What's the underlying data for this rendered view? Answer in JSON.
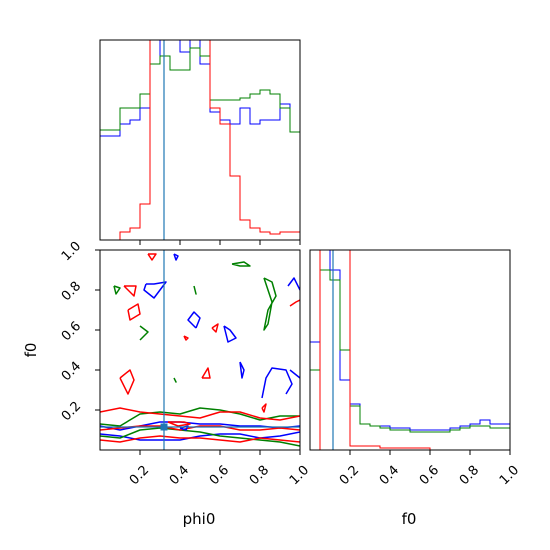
{
  "chart_data": {
    "type": "corner",
    "parameters": [
      "phi0",
      "f0"
    ],
    "truths": {
      "phi0": 0.32,
      "f0": 0.115
    },
    "series_colors": [
      "#0000ff",
      "#008000",
      "#ff0000"
    ],
    "truth_color": "#1f77b4",
    "tick_labels": [
      "0.2",
      "0.4",
      "0.6",
      "0.8",
      "1.0"
    ],
    "y_tick_labels": [
      "0.2",
      "0.4",
      "0.6",
      "0.8",
      "1.0"
    ],
    "xlim": [
      0,
      1
    ],
    "ylim": [
      0,
      1
    ],
    "histograms": {
      "phi0": {
        "bins": 20,
        "series": [
          {
            "color": "blue",
            "values": [
              0.52,
              0.52,
              0.58,
              0.6,
              0.66,
              0.88,
              1.0,
              1.0,
              0.94,
              1.0,
              0.88,
              0.64,
              0.6,
              0.58,
              0.66,
              0.58,
              0.6,
              0.6,
              0.68,
              0.54
            ]
          },
          {
            "color": "green",
            "values": [
              0.55,
              0.55,
              0.66,
              0.66,
              0.73,
              0.88,
              0.92,
              0.85,
              0.85,
              0.96,
              0.92,
              0.7,
              0.7,
              0.7,
              0.71,
              0.73,
              0.75,
              0.73,
              0.66,
              0.54
            ]
          },
          {
            "color": "red",
            "values": [
              0.0,
              0.0,
              0.04,
              0.06,
              0.18,
              1.0,
              1.0,
              1.0,
              1.0,
              1.0,
              1.0,
              0.66,
              0.58,
              0.32,
              0.1,
              0.06,
              0.04,
              0.03,
              0.04,
              0.04
            ]
          }
        ]
      },
      "f0": {
        "bins": 20,
        "series": [
          {
            "color": "blue",
            "values": [
              0.54,
              1.0,
              0.9,
              0.35,
              0.23,
              0.13,
              0.12,
              0.12,
              0.11,
              0.11,
              0.1,
              0.1,
              0.1,
              0.1,
              0.11,
              0.12,
              0.13,
              0.15,
              0.13,
              0.13
            ]
          },
          {
            "color": "green",
            "values": [
              0.4,
              0.9,
              0.85,
              0.5,
              0.22,
              0.13,
              0.12,
              0.11,
              0.1,
              0.1,
              0.09,
              0.09,
              0.09,
              0.09,
              0.1,
              0.11,
              0.12,
              0.12,
              0.11,
              0.11
            ]
          },
          {
            "color": "red",
            "values": [
              0.0,
              1.0,
              1.0,
              1.0,
              0.02,
              0.02,
              0.02,
              0.01,
              0.01,
              0.01,
              0.01,
              0.01,
              0.0,
              0.0,
              0.0,
              0.0,
              0.0,
              0.0,
              0.0,
              0.0
            ]
          }
        ]
      }
    },
    "contours": [
      {
        "color": "blue",
        "points": [
          [
            0.0,
            0.12
          ],
          [
            0.1,
            0.1
          ],
          [
            0.2,
            0.12
          ],
          [
            0.3,
            0.14
          ],
          [
            0.4,
            0.14
          ],
          [
            0.5,
            0.13
          ],
          [
            0.6,
            0.13
          ],
          [
            0.7,
            0.12
          ],
          [
            0.8,
            0.12
          ],
          [
            0.9,
            0.11
          ],
          [
            1.0,
            0.12
          ]
        ]
      },
      {
        "color": "blue",
        "points": [
          [
            0.0,
            0.08
          ],
          [
            0.1,
            0.07
          ],
          [
            0.2,
            0.05
          ],
          [
            0.3,
            0.05
          ],
          [
            0.4,
            0.05
          ],
          [
            0.5,
            0.07
          ],
          [
            0.6,
            0.08
          ],
          [
            0.7,
            0.08
          ],
          [
            0.8,
            0.06
          ],
          [
            0.9,
            0.07
          ],
          [
            1.0,
            0.09
          ]
        ]
      },
      {
        "color": "green",
        "points": [
          [
            0.0,
            0.13
          ],
          [
            0.1,
            0.12
          ],
          [
            0.2,
            0.18
          ],
          [
            0.3,
            0.19
          ],
          [
            0.4,
            0.18
          ],
          [
            0.5,
            0.21
          ],
          [
            0.6,
            0.2
          ],
          [
            0.7,
            0.18
          ],
          [
            0.8,
            0.15
          ],
          [
            0.9,
            0.17
          ],
          [
            1.0,
            0.17
          ]
        ]
      },
      {
        "color": "green",
        "points": [
          [
            0.0,
            0.07
          ],
          [
            0.1,
            0.06
          ],
          [
            0.2,
            0.1
          ],
          [
            0.3,
            0.11
          ],
          [
            0.4,
            0.1
          ],
          [
            0.5,
            0.09
          ],
          [
            0.6,
            0.07
          ],
          [
            0.7,
            0.06
          ],
          [
            0.8,
            0.05
          ],
          [
            0.9,
            0.04
          ],
          [
            1.0,
            0.02
          ]
        ]
      },
      {
        "color": "red",
        "points": [
          [
            0.0,
            0.19
          ],
          [
            0.1,
            0.21
          ],
          [
            0.2,
            0.19
          ],
          [
            0.3,
            0.18
          ],
          [
            0.4,
            0.17
          ],
          [
            0.5,
            0.16
          ],
          [
            0.6,
            0.19
          ],
          [
            0.7,
            0.19
          ],
          [
            0.8,
            0.16
          ],
          [
            0.9,
            0.15
          ],
          [
            1.0,
            0.17
          ]
        ]
      },
      {
        "color": "red",
        "points": [
          [
            0.0,
            0.1
          ],
          [
            0.1,
            0.11
          ],
          [
            0.2,
            0.12
          ],
          [
            0.3,
            0.12
          ],
          [
            0.4,
            0.1
          ],
          [
            0.5,
            0.12
          ],
          [
            0.6,
            0.12
          ],
          [
            0.7,
            0.1
          ],
          [
            0.8,
            0.1
          ],
          [
            0.9,
            0.11
          ],
          [
            1.0,
            0.1
          ]
        ]
      },
      {
        "color": "red",
        "points": [
          [
            0.0,
            0.05
          ],
          [
            0.1,
            0.04
          ],
          [
            0.2,
            0.06
          ],
          [
            0.3,
            0.07
          ],
          [
            0.4,
            0.06
          ],
          [
            0.5,
            0.06
          ],
          [
            0.6,
            0.05
          ],
          [
            0.7,
            0.04
          ],
          [
            0.8,
            0.06
          ],
          [
            0.9,
            0.05
          ],
          [
            1.0,
            0.04
          ]
        ]
      },
      {
        "color": "blue",
        "points": [
          [
            0.23,
            0.83
          ],
          [
            0.27,
            0.83
          ],
          [
            0.33,
            0.84
          ],
          [
            0.27,
            0.76
          ],
          [
            0.22,
            0.8
          ],
          [
            0.23,
            0.83
          ]
        ]
      },
      {
        "color": "blue",
        "points": [
          [
            0.48,
            0.61
          ],
          [
            0.5,
            0.66
          ],
          [
            0.47,
            0.69
          ],
          [
            0.44,
            0.65
          ],
          [
            0.48,
            0.61
          ]
        ]
      },
      {
        "color": "blue",
        "points": [
          [
            0.62,
            0.62
          ],
          [
            0.65,
            0.6
          ],
          [
            0.68,
            0.56
          ],
          [
            0.64,
            0.54
          ],
          [
            0.62,
            0.62
          ]
        ]
      },
      {
        "color": "blue",
        "points": [
          [
            0.7,
            0.44
          ],
          [
            0.72,
            0.4
          ],
          [
            0.71,
            0.36
          ],
          [
            0.7,
            0.44
          ]
        ]
      },
      {
        "color": "blue",
        "points": [
          [
            0.94,
            0.82
          ],
          [
            0.97,
            0.86
          ],
          [
            1.0,
            0.8
          ]
        ]
      },
      {
        "color": "blue",
        "points": [
          [
            0.95,
            0.4
          ],
          [
            1.0,
            0.36
          ]
        ]
      },
      {
        "color": "blue",
        "points": [
          [
            0.81,
            0.26
          ],
          [
            0.83,
            0.36
          ],
          [
            0.86,
            0.41
          ],
          [
            0.93,
            0.4
          ],
          [
            0.96,
            0.33
          ],
          [
            0.93,
            0.28
          ]
        ]
      },
      {
        "color": "green",
        "points": [
          [
            0.66,
            0.93
          ],
          [
            0.72,
            0.94
          ],
          [
            0.75,
            0.92
          ],
          [
            0.7,
            0.92
          ],
          [
            0.66,
            0.93
          ]
        ]
      },
      {
        "color": "green",
        "points": [
          [
            0.82,
            0.86
          ],
          [
            0.86,
            0.84
          ],
          [
            0.88,
            0.77
          ],
          [
            0.84,
            0.7
          ],
          [
            0.82,
            0.6
          ],
          [
            0.84,
            0.63
          ],
          [
            0.86,
            0.74
          ],
          [
            0.82,
            0.86
          ]
        ]
      },
      {
        "color": "green",
        "points": [
          [
            0.07,
            0.82
          ],
          [
            0.1,
            0.81
          ],
          [
            0.08,
            0.78
          ],
          [
            0.07,
            0.82
          ]
        ]
      },
      {
        "color": "green",
        "points": [
          [
            0.2,
            0.62
          ],
          [
            0.24,
            0.59
          ],
          [
            0.2,
            0.55
          ]
        ]
      },
      {
        "color": "green",
        "points": [
          [
            0.47,
            0.82
          ],
          [
            0.48,
            0.78
          ],
          [
            0.47,
            0.82
          ]
        ]
      },
      {
        "color": "green",
        "points": [
          [
            0.37,
            0.36
          ],
          [
            0.38,
            0.34
          ],
          [
            0.37,
            0.36
          ]
        ]
      },
      {
        "color": "red",
        "points": [
          [
            0.12,
            0.82
          ],
          [
            0.18,
            0.82
          ],
          [
            0.17,
            0.77
          ],
          [
            0.12,
            0.82
          ]
        ]
      },
      {
        "color": "red",
        "points": [
          [
            0.14,
            0.7
          ],
          [
            0.19,
            0.73
          ],
          [
            0.2,
            0.68
          ],
          [
            0.15,
            0.65
          ],
          [
            0.14,
            0.7
          ]
        ]
      },
      {
        "color": "red",
        "points": [
          [
            0.56,
            0.61
          ],
          [
            0.59,
            0.63
          ],
          [
            0.58,
            0.59
          ],
          [
            0.56,
            0.61
          ]
        ]
      },
      {
        "color": "red",
        "points": [
          [
            0.42,
            0.57
          ],
          [
            0.44,
            0.56
          ],
          [
            0.43,
            0.55
          ],
          [
            0.42,
            0.57
          ]
        ]
      },
      {
        "color": "red",
        "points": [
          [
            0.95,
            0.72
          ],
          [
            0.98,
            0.74
          ],
          [
            1.0,
            0.75
          ]
        ]
      },
      {
        "color": "red",
        "points": [
          [
            0.1,
            0.36
          ],
          [
            0.15,
            0.4
          ],
          [
            0.17,
            0.35
          ],
          [
            0.14,
            0.28
          ],
          [
            0.1,
            0.36
          ]
        ]
      },
      {
        "color": "red",
        "points": [
          [
            0.51,
            0.36
          ],
          [
            0.54,
            0.41
          ],
          [
            0.55,
            0.36
          ],
          [
            0.51,
            0.36
          ]
        ]
      },
      {
        "color": "red",
        "points": [
          [
            0.81,
            0.21
          ],
          [
            0.83,
            0.23
          ],
          [
            0.82,
            0.19
          ],
          [
            0.81,
            0.21
          ]
        ]
      },
      {
        "color": "red",
        "points": [
          [
            0.24,
            0.98
          ],
          [
            0.28,
            0.98
          ],
          [
            0.26,
            0.95
          ],
          [
            0.24,
            0.98
          ]
        ]
      },
      {
        "color": "blue",
        "points": [
          [
            0.37,
            0.98
          ],
          [
            0.39,
            0.97
          ],
          [
            0.38,
            0.95
          ],
          [
            0.37,
            0.98
          ]
        ]
      },
      {
        "color": "blue",
        "points": [
          [
            0.4,
            0.11
          ],
          [
            0.44,
            0.12
          ],
          [
            0.43,
            0.1
          ],
          [
            0.4,
            0.11
          ]
        ]
      },
      {
        "color": "red",
        "points": [
          [
            0.34,
            0.14
          ],
          [
            0.42,
            0.14
          ],
          [
            0.45,
            0.13
          ],
          [
            0.39,
            0.12
          ],
          [
            0.34,
            0.14
          ]
        ]
      }
    ],
    "truth_marker": {
      "x": 0.32,
      "y": 0.115
    }
  }
}
